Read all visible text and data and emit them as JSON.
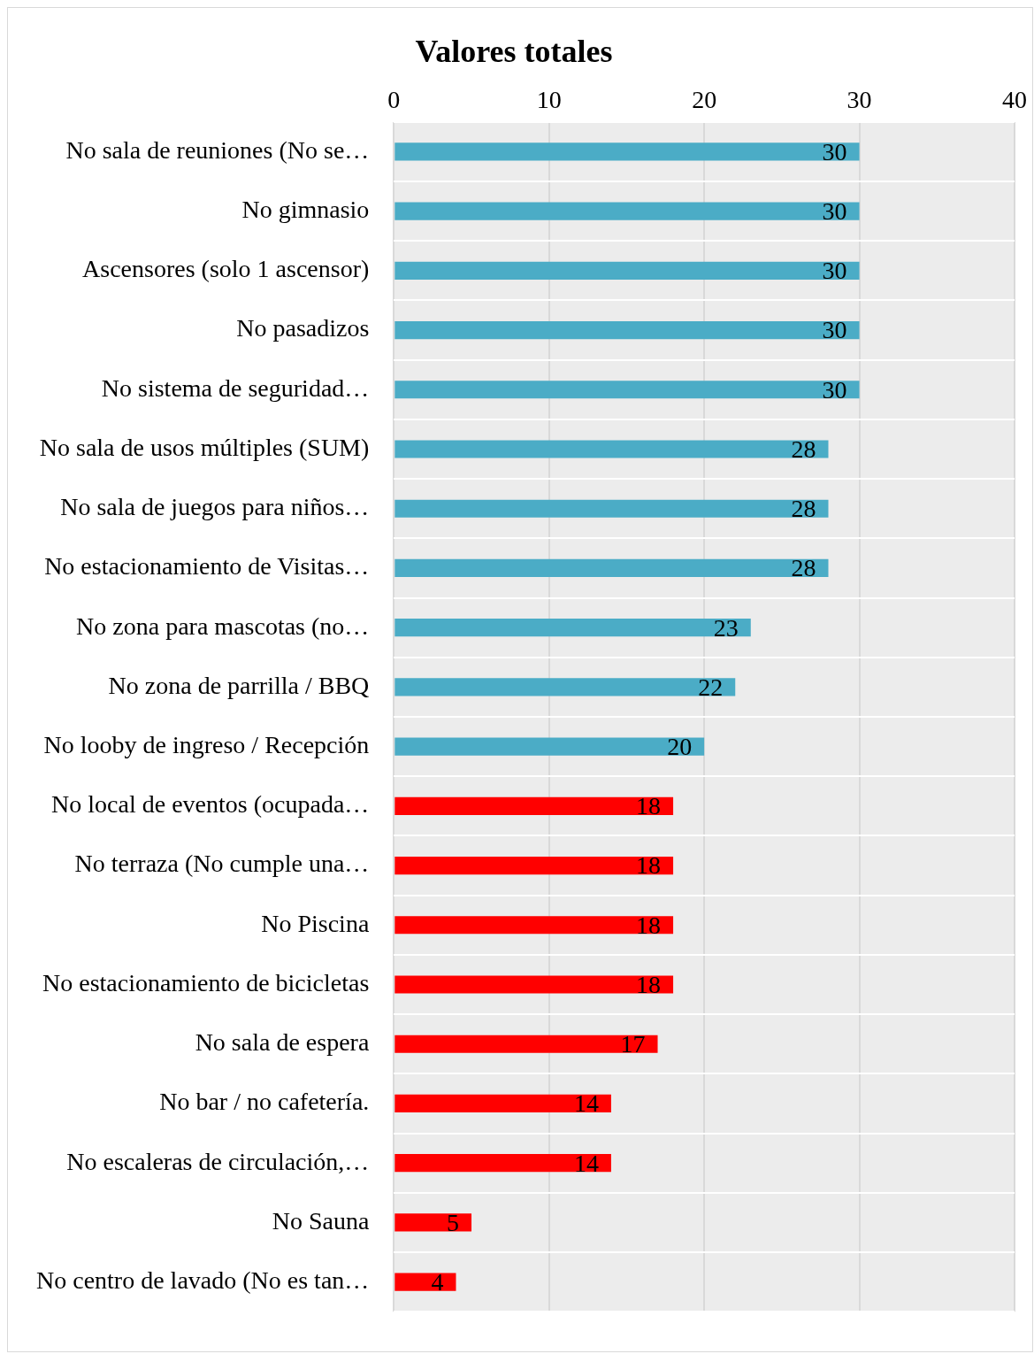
{
  "chart_data": {
    "type": "bar",
    "orientation": "horizontal",
    "title": "Valores totales",
    "categories": [
      "No sala de reuniones (No se…",
      "No gimnasio",
      "Ascensores (solo 1 ascensor)",
      "No pasadizos",
      "No sistema de seguridad…",
      "No sala de usos múltiples (SUM)",
      "No sala de juegos para niños…",
      "No estacionamiento de Visitas…",
      "No zona para mascotas (no…",
      "No zona de parrilla / BBQ",
      "No looby de ingreso / Recepción",
      "No local de eventos (ocupada…",
      "No terraza (No cumple una…",
      "No Piscina",
      "No estacionamiento de bicicletas",
      "No sala de espera",
      "No bar / no cafetería.",
      "No escaleras de circulación,…",
      "No Sauna",
      "No centro de lavado (No es tan…"
    ],
    "values": [
      30,
      30,
      30,
      30,
      30,
      28,
      28,
      28,
      23,
      22,
      20,
      18,
      18,
      18,
      18,
      17,
      14,
      14,
      5,
      4
    ],
    "colors": [
      "#4bacc6",
      "#4bacc6",
      "#4bacc6",
      "#4bacc6",
      "#4bacc6",
      "#4bacc6",
      "#4bacc6",
      "#4bacc6",
      "#4bacc6",
      "#4bacc6",
      "#4bacc6",
      "#ff0000",
      "#ff0000",
      "#ff0000",
      "#ff0000",
      "#ff0000",
      "#ff0000",
      "#ff0000",
      "#ff0000",
      "#ff0000"
    ],
    "xlim": [
      0,
      40
    ],
    "xticks": [
      0,
      10,
      20,
      30,
      40
    ],
    "grid": true,
    "legend": false,
    "data_labels": true
  }
}
